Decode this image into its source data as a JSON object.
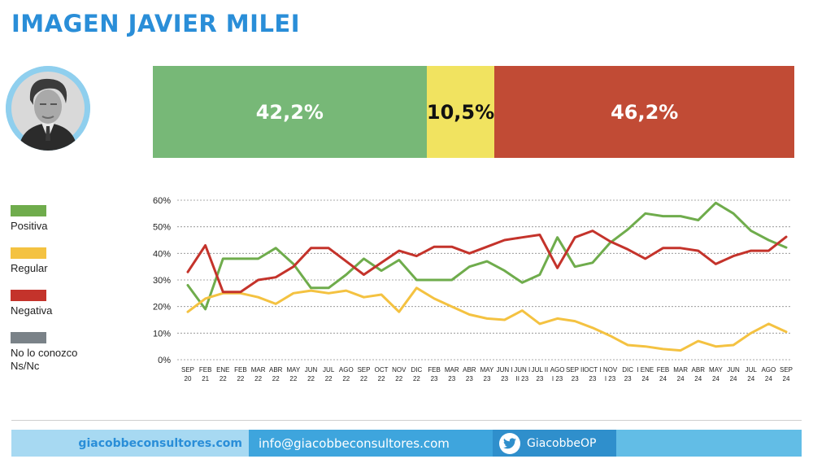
{
  "title": "IMAGEN JAVIER MILEI",
  "avatar_icon": "person-portrait-icon",
  "summary_bar": [
    {
      "key": "positiva",
      "label": "42,2%",
      "value": 42.2,
      "color": "#77b877"
    },
    {
      "key": "regular",
      "label": "10,5%",
      "value": 10.5,
      "color": "#f1e360"
    },
    {
      "key": "negativa",
      "label": "46,2%",
      "value": 46.2,
      "color": "#c14b35"
    }
  ],
  "legend": [
    {
      "label": "Positiva",
      "color": "#6fac4c"
    },
    {
      "label": "Regular",
      "color": "#f4c241"
    },
    {
      "label": "Negativa",
      "color": "#c4332b"
    },
    {
      "label": "No lo conozco\nNs/Nc",
      "color": "#7a8288"
    }
  ],
  "footer": {
    "website": "giacobbeconsultores.com",
    "email": "info@giacobbeconsultores.com",
    "twitter": "GiacobbeOP",
    "twitter_icon": "twitter-bird-icon"
  },
  "chart_data": {
    "type": "line",
    "ylim": [
      0,
      60
    ],
    "yticks": [
      "0%",
      "10%",
      "20%",
      "30%",
      "40%",
      "50%",
      "60%"
    ],
    "grid": true,
    "categories": [
      "SEP 20",
      "FEB 21",
      "ENE 22",
      "FEB 22",
      "MAR 22",
      "ABR 22",
      "MAY 22",
      "JUN 22",
      "JUL 22",
      "AGO 22",
      "SEP 22",
      "OCT 22",
      "NOV 22",
      "DIC 22",
      "FEB 23",
      "MAR 23",
      "ABR 23",
      "MAY 23",
      "JUN I 23",
      "JUN II 23",
      "JUL II 23",
      "AGO I 23",
      "SEP II 23",
      "OCT I 23",
      "NOV I 23",
      "DIC 23",
      "ENE 24",
      "FEB 24",
      "MAR 24",
      "ABR 24",
      "MAY 24",
      "JUN 24",
      "JUL 24",
      "AGO 24",
      "SEP 24"
    ],
    "tick_labels": [
      [
        "SEP",
        "20"
      ],
      [
        "FEB",
        "21"
      ],
      [
        "ENE",
        "22"
      ],
      [
        "FEB",
        "22"
      ],
      [
        "MAR",
        "22"
      ],
      [
        "ABR",
        "22"
      ],
      [
        "MAY",
        "22"
      ],
      [
        "JUN",
        "22"
      ],
      [
        "JUL",
        "22"
      ],
      [
        "AGO",
        "22"
      ],
      [
        "SEP",
        "22"
      ],
      [
        "OCT",
        "22"
      ],
      [
        "NOV",
        "22"
      ],
      [
        "DIC",
        "22"
      ],
      [
        "FEB",
        "23"
      ],
      [
        "MAR",
        "23"
      ],
      [
        "ABR",
        "23"
      ],
      [
        "MAY",
        "23"
      ],
      [
        "JUN I",
        "23"
      ],
      [
        "JUN I",
        "II 23"
      ],
      [
        "JUL II",
        "23"
      ],
      [
        "AGO",
        "I 23"
      ],
      [
        "SEP II",
        "23"
      ],
      [
        "OCT I",
        "23"
      ],
      [
        "NOV",
        "I 23"
      ],
      [
        "DIC",
        "23"
      ],
      [
        "I ENE",
        "24"
      ],
      [
        "FEB",
        "24"
      ],
      [
        "MAR",
        "24"
      ],
      [
        "ABR",
        "24"
      ],
      [
        "MAY",
        "24"
      ],
      [
        "JUN",
        "24"
      ],
      [
        "JUL",
        "24"
      ],
      [
        "AGO",
        "24"
      ],
      [
        "SEP",
        "24"
      ]
    ],
    "series": [
      {
        "name": "Positiva",
        "color": "#6fac4c",
        "values": [
          28,
          19,
          38,
          38,
          38,
          42,
          36,
          27,
          27,
          32,
          38,
          33.5,
          37.5,
          30,
          30,
          30,
          35,
          37,
          33.5,
          29,
          32,
          46,
          35,
          36.5,
          44,
          49,
          55,
          54,
          54,
          52.5,
          59,
          55,
          48.5,
          45,
          42.2
        ]
      },
      {
        "name": "Regular",
        "color": "#f4c241",
        "values": [
          18,
          23,
          25,
          25,
          23.5,
          21,
          25,
          26,
          25,
          26,
          23.5,
          24.5,
          18,
          27,
          23,
          20,
          17,
          15.5,
          15,
          18.5,
          13.5,
          15.5,
          14.5,
          12,
          9,
          5.5,
          5,
          4,
          3.5,
          7,
          5,
          5.5,
          10,
          13.5,
          10.5
        ]
      },
      {
        "name": "Negativa",
        "color": "#c4332b",
        "values": [
          33,
          43,
          25.5,
          25.5,
          30,
          31,
          35,
          42,
          42,
          37,
          32,
          36.5,
          41,
          39,
          42.5,
          42.5,
          40,
          42.5,
          45,
          46,
          47,
          34.5,
          46,
          48.5,
          44.5,
          41.5,
          38,
          42,
          42,
          41,
          36,
          39,
          41,
          41,
          46.2
        ]
      }
    ]
  }
}
